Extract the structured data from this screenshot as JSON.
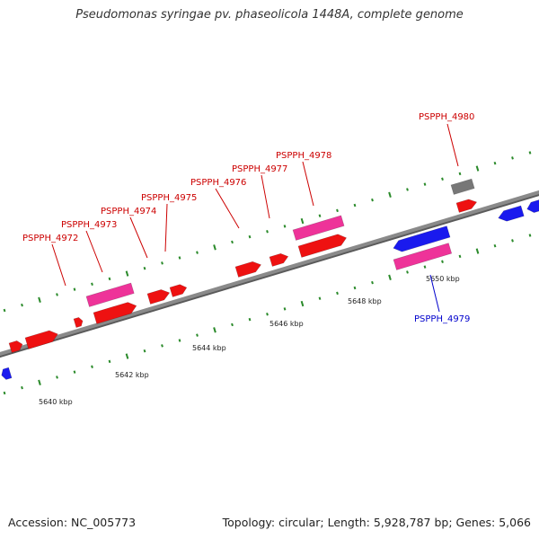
{
  "title": "Pseudomonas syringae pv. phaseolicola 1448A, complete genome",
  "footer": {
    "accession": "Accession: NC_005773",
    "summary": "Topology: circular; Length: 5,928,787 bp; Genes: 5,066"
  },
  "colors": {
    "backbone": "#8a8a8a",
    "cds_forward": "#ee1111",
    "cds_reverse": "#1a1aee",
    "gene_forward": "#ee3399",
    "gene_reverse": "#ee3399",
    "other": "#777777",
    "tick": "#2a8a2a",
    "label_forward": "#cc0000",
    "label_reverse": "#0000cc"
  },
  "kbp_labels": [
    {
      "kbp": 5640,
      "text": "5640 kbp"
    },
    {
      "kbp": 5642,
      "text": "5642 kbp"
    },
    {
      "kbp": 5644,
      "text": "5644 kbp"
    },
    {
      "kbp": 5646,
      "text": "5646 kbp"
    },
    {
      "kbp": 5648,
      "text": "5648 kbp"
    },
    {
      "kbp": 5650,
      "text": "5650 kbp"
    }
  ],
  "gene_labels": [
    {
      "text": "PSPPH_4972",
      "strand": "+"
    },
    {
      "text": "PSPPH_4973",
      "strand": "+"
    },
    {
      "text": "PSPPH_4974",
      "strand": "+"
    },
    {
      "text": "PSPPH_4975",
      "strand": "+"
    },
    {
      "text": "PSPPH_4976",
      "strand": "+"
    },
    {
      "text": "PSPPH_4977",
      "strand": "+"
    },
    {
      "text": "PSPPH_4978",
      "strand": "+"
    },
    {
      "text": "PSPPH_4979",
      "strand": "-"
    },
    {
      "text": "PSPPH_4980",
      "strand": "+"
    }
  ]
}
